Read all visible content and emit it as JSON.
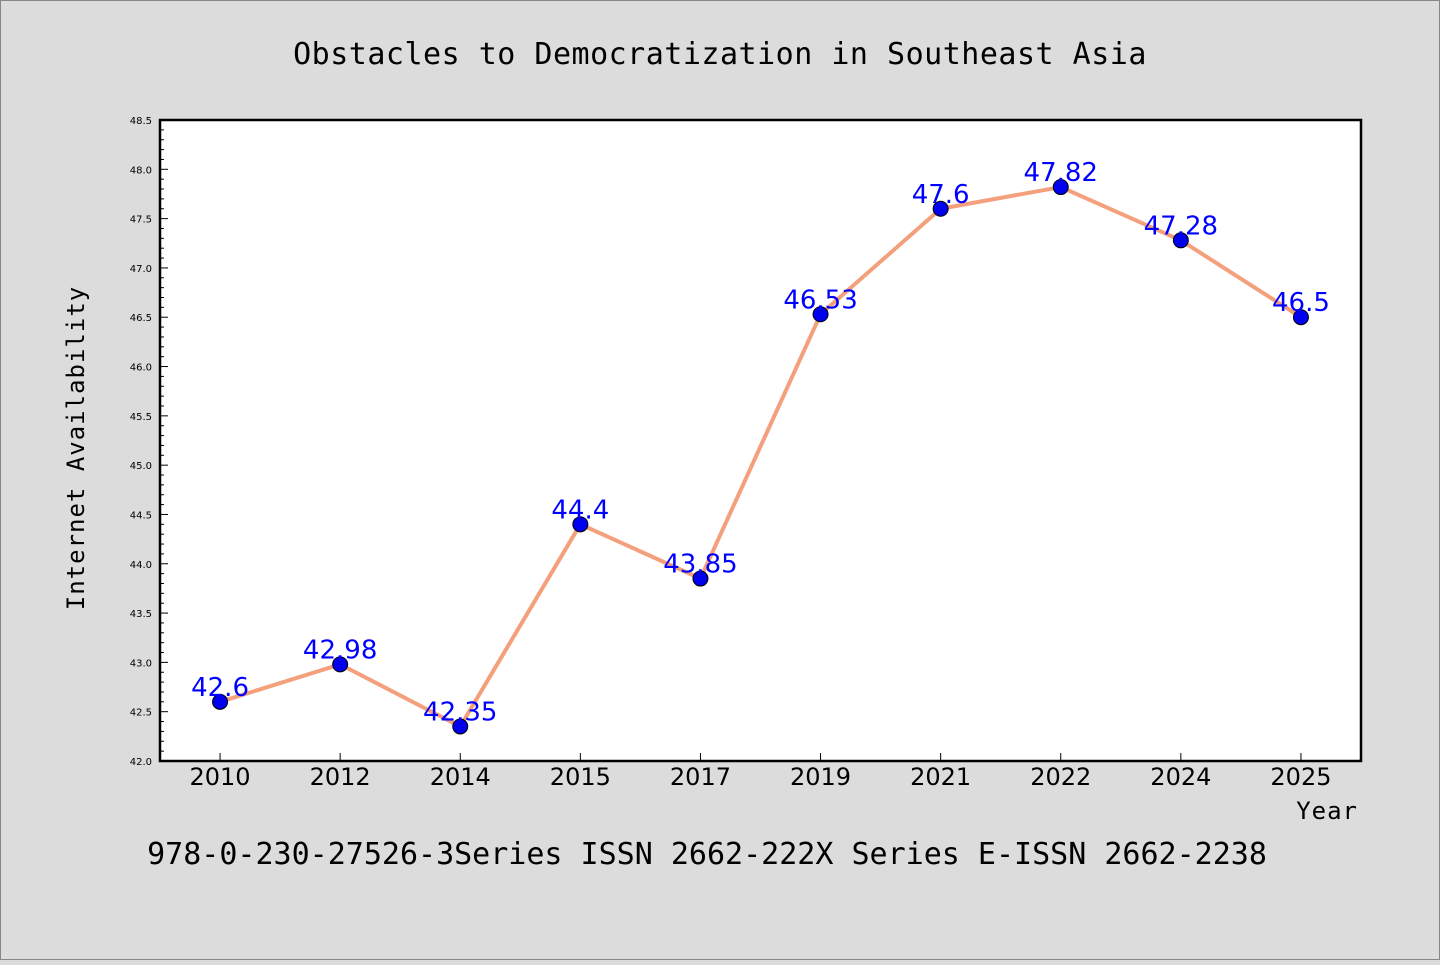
{
  "chart_data": {
    "type": "line",
    "title": "Obstacles to Democratization in Southeast Asia",
    "xlabel": "Year",
    "ylabel": "Internet Availability",
    "categories": [
      "2010",
      "2012",
      "2014",
      "2015",
      "2017",
      "2019",
      "2021",
      "2022",
      "2024",
      "2025"
    ],
    "series": [
      {
        "values": [
          42.6,
          42.98,
          42.35,
          44.4,
          43.85,
          46.53,
          47.6,
          47.82,
          47.28,
          46.5
        ],
        "data_labels": [
          "42.6",
          "42.98",
          "42.35",
          "44.4",
          "43.85",
          "46.53",
          "47.6",
          "47.82",
          "47.28",
          "46.5"
        ],
        "line_color": "#f4a07c",
        "marker_color": "#0000ee",
        "label_color": "#0000ff"
      }
    ],
    "ylim": [
      42.0,
      48.5
    ],
    "y_ticks": [
      "42.0",
      "42.5",
      "43.0",
      "43.5",
      "44.0",
      "44.5",
      "45.0",
      "45.5",
      "46.0",
      "46.5",
      "47.0",
      "47.5",
      "48.0",
      "48.5"
    ],
    "y_minor_step": 0.1,
    "grid": false,
    "legend": "none"
  },
  "footer": {
    "text": "978-0-230-27526-3Series ISSN 2662-222X Series E-ISSN 2662-2238"
  },
  "colors": {
    "background": "#dcdcdc",
    "plot_background": "#ffffff"
  }
}
